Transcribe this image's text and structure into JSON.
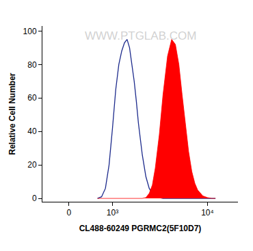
{
  "chart_data": {
    "type": "histogram",
    "annotations": [
      "WWW.PTGLAB.COM"
    ],
    "x_label": "CL488-60249 PGRMC2(5F10D7)",
    "y_label": "Relative Cell Number",
    "x": [
      600,
      700,
      800,
      900,
      1000,
      1100,
      1200,
      1300,
      1400,
      1500,
      1600,
      1700,
      1800,
      1900,
      2000,
      2200,
      2400,
      2600,
      2800,
      3000,
      3300,
      3600,
      4000,
      4400,
      4800,
      5200,
      5600,
      6000,
      6500,
      7000,
      7500,
      8000,
      9000,
      10000,
      11000,
      12000
    ],
    "series": [
      {
        "type": "line",
        "color": "#1c2a8c",
        "values": [
          0,
          1,
          6,
          20,
          42,
          65,
          80,
          88,
          93,
          95,
          90,
          80,
          70,
          58,
          45,
          26,
          13,
          6,
          3,
          1,
          0.5,
          0,
          0,
          0,
          0,
          0,
          0,
          0,
          0,
          0,
          0,
          0,
          0,
          0,
          0,
          0
        ]
      },
      {
        "type": "area",
        "color": "#ff0000",
        "values": [
          0,
          0,
          0,
          0,
          0,
          0,
          0,
          0,
          0,
          0,
          0,
          0,
          0,
          0,
          0,
          0,
          0.5,
          3,
          8,
          18,
          38,
          62,
          85,
          95,
          92,
          80,
          62,
          45,
          28,
          16,
          9,
          5,
          1.5,
          0.5,
          0,
          0
        ]
      }
    ],
    "xlim": [
      -550,
      20000
    ],
    "xticks": [
      0,
      {
        "value": 1000,
        "label": "10³"
      },
      {
        "value": 10000,
        "label": "10⁴"
      }
    ],
    "ylim": [
      -2,
      103
    ],
    "yticks": [
      0,
      20,
      40,
      60,
      80,
      100
    ],
    "grid": false
  }
}
